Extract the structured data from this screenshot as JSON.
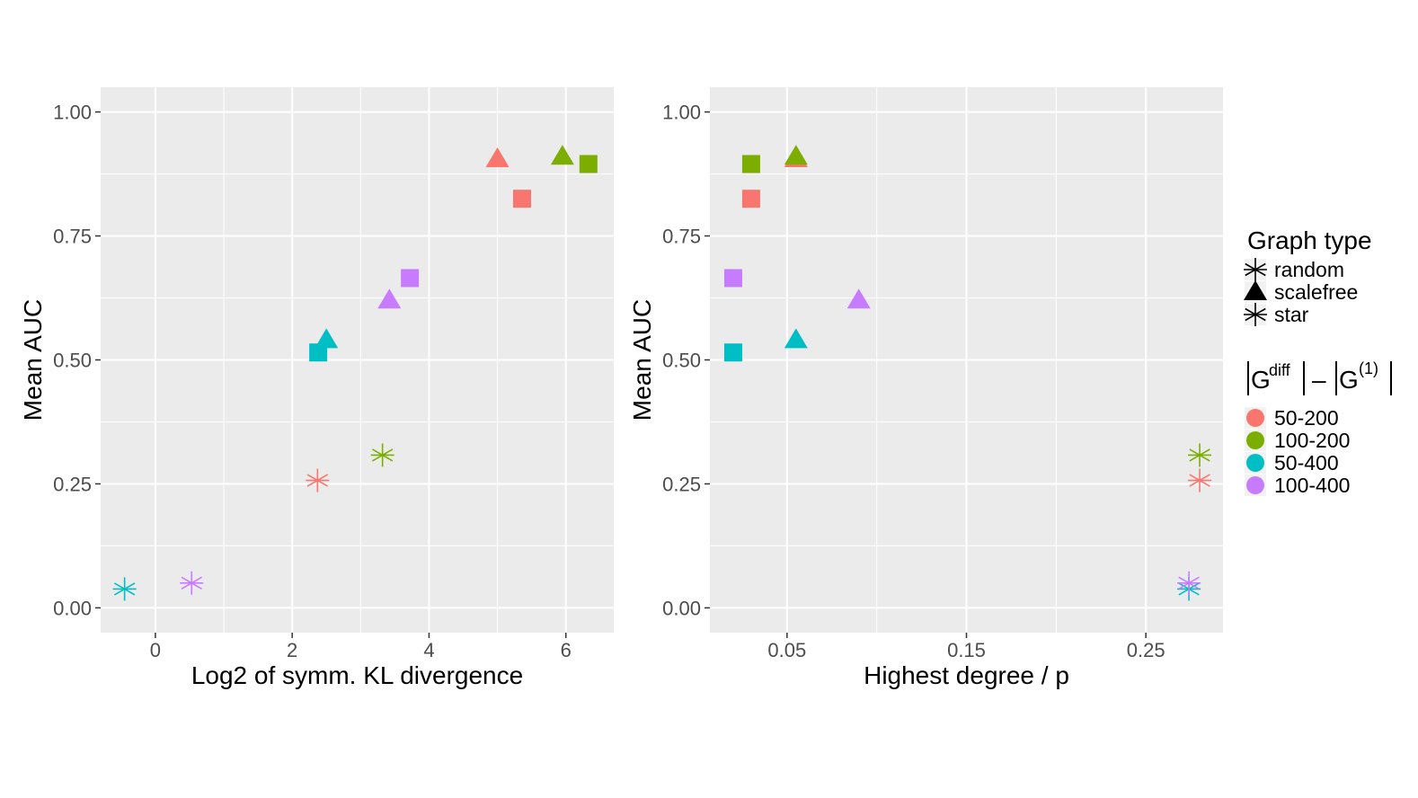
{
  "legend": {
    "shape_title": "Graph type",
    "shape_items": [
      {
        "label": "random",
        "shape": "square"
      },
      {
        "label": "scalefree",
        "shape": "triangle"
      },
      {
        "label": "star",
        "shape": "star"
      }
    ],
    "color_title": {
      "g1": "G",
      "sup1": "diff",
      "minus": "–",
      "g2": "G",
      "sup2": "(1)"
    },
    "color_items": [
      {
        "label": "50-200",
        "color": "#F8766D"
      },
      {
        "label": "100-200",
        "color": "#7CAE00"
      },
      {
        "label": "50-400",
        "color": "#00BFC4"
      },
      {
        "label": "100-400",
        "color": "#C77CFF"
      }
    ]
  },
  "chart_data": [
    {
      "type": "scatter",
      "title": "",
      "xlabel": "Log2 of symm. KL divergence",
      "ylabel": "Mean AUC",
      "xlim": [
        -0.8,
        6.7
      ],
      "ylim": [
        -0.05,
        1.05
      ],
      "xticks": [
        {
          "value": 0,
          "label": "0"
        },
        {
          "value": 2,
          "label": "2"
        },
        {
          "value": 4,
          "label": "4"
        },
        {
          "value": 6,
          "label": "6"
        }
      ],
      "xminor": [
        1,
        3,
        5
      ],
      "yticks": [
        {
          "value": 0,
          "label": "0.00"
        },
        {
          "value": 0.25,
          "label": "0.25"
        },
        {
          "value": 0.5,
          "label": "0.50"
        },
        {
          "value": 0.75,
          "label": "0.75"
        },
        {
          "value": 1,
          "label": "1.00"
        }
      ],
      "yminor": [
        0.125,
        0.375,
        0.625,
        0.875
      ],
      "points": [
        {
          "x": 5.36,
          "y": 0.825,
          "shape": "random",
          "group": "50-200"
        },
        {
          "x": 6.33,
          "y": 0.895,
          "shape": "random",
          "group": "100-200"
        },
        {
          "x": 2.38,
          "y": 0.515,
          "shape": "random",
          "group": "50-400"
        },
        {
          "x": 3.72,
          "y": 0.665,
          "shape": "random",
          "group": "100-400"
        },
        {
          "x": 5.0,
          "y": 0.905,
          "shape": "scalefree",
          "group": "50-200"
        },
        {
          "x": 5.95,
          "y": 0.91,
          "shape": "scalefree",
          "group": "100-200"
        },
        {
          "x": 2.5,
          "y": 0.54,
          "shape": "scalefree",
          "group": "50-400"
        },
        {
          "x": 3.42,
          "y": 0.62,
          "shape": "scalefree",
          "group": "100-400"
        },
        {
          "x": 2.37,
          "y": 0.257,
          "shape": "star",
          "group": "50-200"
        },
        {
          "x": 3.32,
          "y": 0.308,
          "shape": "star",
          "group": "100-200"
        },
        {
          "x": -0.45,
          "y": 0.038,
          "shape": "star",
          "group": "50-400"
        },
        {
          "x": 0.53,
          "y": 0.05,
          "shape": "star",
          "group": "100-400"
        }
      ]
    },
    {
      "type": "scatter",
      "title": "",
      "xlabel": "Highest degree / p",
      "ylabel": "Mean AUC",
      "xlim": [
        0.007,
        0.293
      ],
      "ylim": [
        -0.05,
        1.05
      ],
      "xticks": [
        {
          "value": 0.05,
          "label": "0.05"
        },
        {
          "value": 0.15,
          "label": "0.15"
        },
        {
          "value": 0.25,
          "label": "0.25"
        }
      ],
      "xminor": [
        0.1,
        0.2
      ],
      "yticks": [
        {
          "value": 0,
          "label": "0.00"
        },
        {
          "value": 0.25,
          "label": "0.25"
        },
        {
          "value": 0.5,
          "label": "0.50"
        },
        {
          "value": 0.75,
          "label": "0.75"
        },
        {
          "value": 1,
          "label": "1.00"
        }
      ],
      "yminor": [
        0.125,
        0.375,
        0.625,
        0.875
      ],
      "points": [
        {
          "x": 0.03,
          "y": 0.825,
          "shape": "random",
          "group": "50-200"
        },
        {
          "x": 0.03,
          "y": 0.895,
          "shape": "random",
          "group": "100-200"
        },
        {
          "x": 0.02,
          "y": 0.515,
          "shape": "random",
          "group": "50-400"
        },
        {
          "x": 0.02,
          "y": 0.665,
          "shape": "random",
          "group": "100-400"
        },
        {
          "x": 0.055,
          "y": 0.905,
          "shape": "scalefree",
          "group": "50-200"
        },
        {
          "x": 0.055,
          "y": 0.91,
          "shape": "scalefree",
          "group": "100-200"
        },
        {
          "x": 0.055,
          "y": 0.54,
          "shape": "scalefree",
          "group": "50-400"
        },
        {
          "x": 0.09,
          "y": 0.62,
          "shape": "scalefree",
          "group": "100-400"
        },
        {
          "x": 0.28,
          "y": 0.257,
          "shape": "star",
          "group": "50-200"
        },
        {
          "x": 0.28,
          "y": 0.308,
          "shape": "star",
          "group": "100-200"
        },
        {
          "x": 0.274,
          "y": 0.038,
          "shape": "star",
          "group": "50-400"
        },
        {
          "x": 0.274,
          "y": 0.05,
          "shape": "star",
          "group": "100-400"
        }
      ]
    }
  ]
}
